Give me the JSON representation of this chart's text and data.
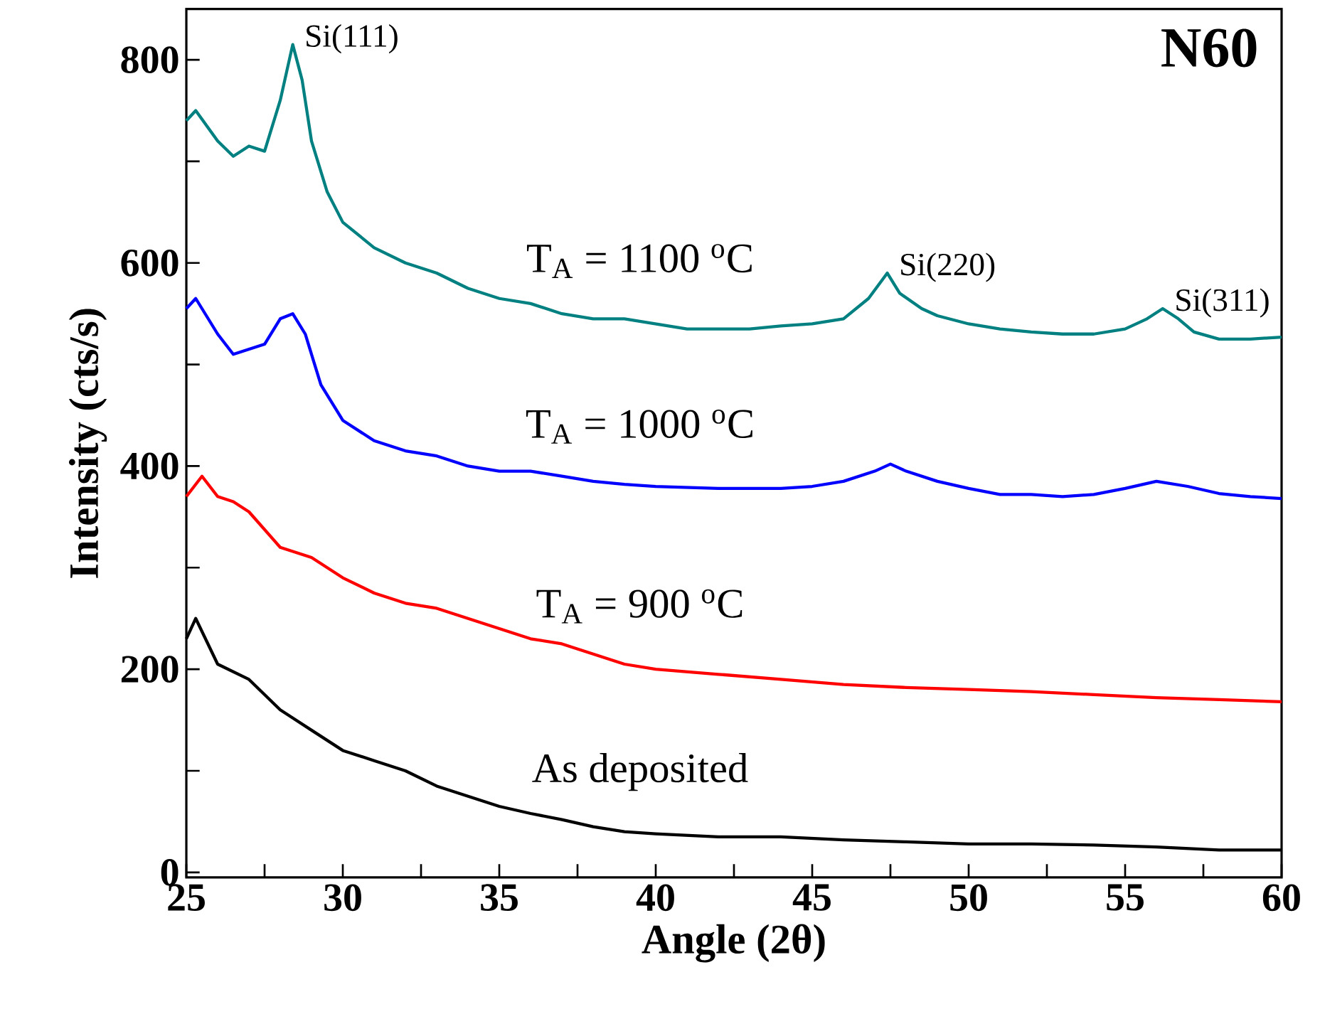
{
  "chart_data": {
    "type": "line",
    "title": "N60",
    "xlabel": "Angle (2θ)",
    "ylabel": "Intensity (cts/s)",
    "xlim": [
      25,
      60
    ],
    "ylim": [
      -5,
      850
    ],
    "xticks": [
      25,
      {
        "value": 27.5,
        "label": null
      },
      30,
      {
        "value": 32.5,
        "label": null
      },
      35,
      {
        "value": 37.5,
        "label": null
      },
      40,
      {
        "value": 42.5,
        "label": null
      },
      45,
      {
        "value": 47.5,
        "label": null
      },
      50,
      {
        "value": 52.5,
        "label": null
      },
      55,
      {
        "value": 57.5,
        "label": null
      },
      60
    ],
    "yticks": [
      0,
      {
        "value": 100,
        "label": null
      },
      200,
      {
        "value": 300,
        "label": null
      },
      400,
      {
        "value": 500,
        "label": null
      },
      600,
      {
        "value": 700,
        "label": null
      },
      800
    ],
    "grid": false,
    "legend": false,
    "marker": "none",
    "line_style": "solid",
    "series": [
      {
        "name": "T$_{A}$ = 1100 $^{o}$C",
        "color": "#008080",
        "x": [
          25,
          25.3,
          26,
          26.5,
          27,
          27.5,
          28,
          28.4,
          28.7,
          29,
          29.5,
          30,
          31,
          32,
          33,
          34,
          35,
          36,
          37,
          38,
          39,
          40,
          41,
          42,
          43,
          44,
          45,
          46,
          46.8,
          47.4,
          47.8,
          48.5,
          49,
          50,
          51,
          52,
          53,
          54,
          55,
          55.7,
          56.2,
          56.7,
          57.2,
          58,
          59,
          60
        ],
        "values": [
          740,
          750,
          720,
          705,
          715,
          710,
          760,
          815,
          780,
          720,
          670,
          640,
          615,
          600,
          590,
          575,
          565,
          560,
          550,
          545,
          545,
          540,
          535,
          535,
          535,
          538,
          540,
          545,
          565,
          590,
          570,
          555,
          548,
          540,
          535,
          532,
          530,
          530,
          535,
          545,
          555,
          545,
          532,
          525,
          525,
          527
        ]
      },
      {
        "name": "T$_{A}$ = 1000 $^{o}$C",
        "color": "#0000ff",
        "x": [
          25,
          25.3,
          26,
          26.5,
          27,
          27.5,
          28,
          28.4,
          28.8,
          29.3,
          30,
          31,
          32,
          33,
          34,
          35,
          36,
          37,
          38,
          39,
          40,
          42,
          44,
          45,
          46,
          47,
          47.5,
          48,
          49,
          50,
          51,
          52,
          53,
          54,
          55,
          56,
          57,
          58,
          59,
          60
        ],
        "values": [
          555,
          565,
          530,
          510,
          515,
          520,
          545,
          550,
          530,
          480,
          445,
          425,
          415,
          410,
          400,
          395,
          395,
          390,
          385,
          382,
          380,
          378,
          378,
          380,
          385,
          395,
          402,
          395,
          385,
          378,
          372,
          372,
          370,
          372,
          378,
          385,
          380,
          373,
          370,
          368
        ]
      },
      {
        "name": "T$_{A}$ = 900 $^{o}$C",
        "color": "#ff0000",
        "x": [
          25,
          25.5,
          26,
          26.5,
          27,
          28,
          29,
          30,
          31,
          32,
          33,
          34,
          35,
          36,
          37,
          38,
          39,
          40,
          42,
          44,
          46,
          48,
          50,
          52,
          54,
          56,
          58,
          60
        ],
        "values": [
          370,
          390,
          370,
          365,
          355,
          320,
          310,
          290,
          275,
          265,
          260,
          250,
          240,
          230,
          225,
          215,
          205,
          200,
          195,
          190,
          185,
          182,
          180,
          178,
          175,
          172,
          170,
          168
        ]
      },
      {
        "name": "As deposited",
        "color": "#000000",
        "x": [
          25,
          25.3,
          26,
          27,
          28,
          29,
          30,
          31,
          32,
          33,
          34,
          35,
          36,
          37,
          38,
          39,
          40,
          42,
          44,
          46,
          48,
          50,
          52,
          54,
          56,
          58,
          60
        ],
        "values": [
          230,
          250,
          205,
          190,
          160,
          140,
          120,
          110,
          100,
          85,
          75,
          65,
          58,
          52,
          45,
          40,
          38,
          35,
          35,
          32,
          30,
          28,
          28,
          27,
          25,
          22,
          22
        ]
      }
    ],
    "annotations": [
      {
        "text": "Si(111)",
        "x": 28.4,
        "y": 815
      },
      {
        "text": "Si(220)",
        "x": 47.4,
        "y": 590
      },
      {
        "text": "Si(311)",
        "x": 56.2,
        "y": 555
      }
    ]
  }
}
